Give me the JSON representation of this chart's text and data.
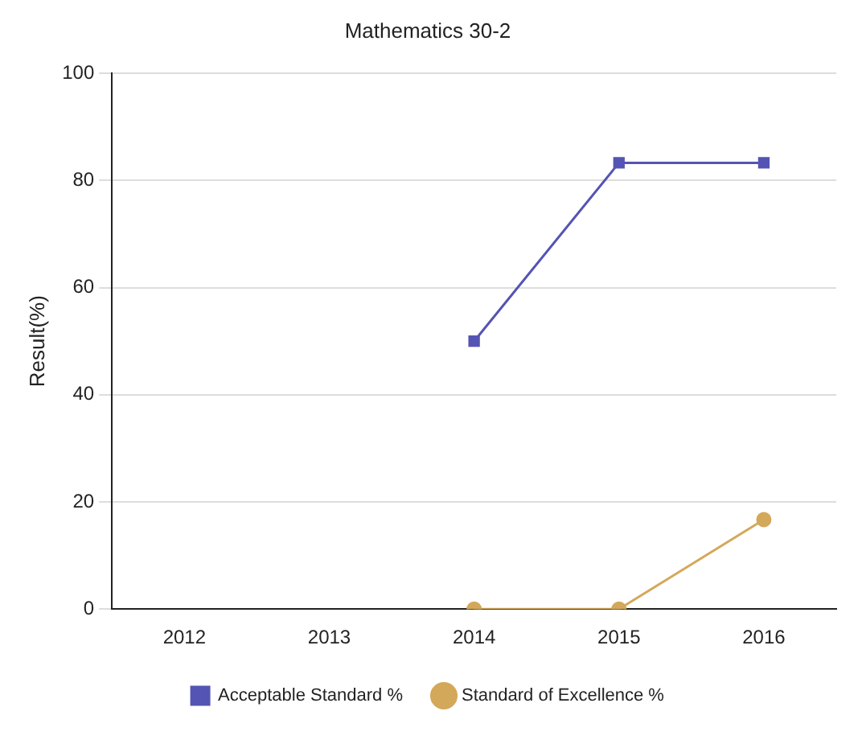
{
  "chart_data": {
    "type": "line",
    "title": "Mathematics 30-2",
    "ylabel": "Result(%)",
    "categories": [
      "2012",
      "2013",
      "2014",
      "2015",
      "2016"
    ],
    "series": [
      {
        "name": "Acceptable Standard %",
        "color": "#5454b4",
        "values": [
          null,
          null,
          50,
          83.3,
          83.3
        ],
        "marker": "square"
      },
      {
        "name": "Standard of Excellence %",
        "color": "#d4a85a",
        "values": [
          null,
          null,
          0,
          0,
          16.7
        ],
        "marker": "circle"
      }
    ],
    "ylim": [
      0,
      100
    ],
    "yticks": [
      0,
      20,
      40,
      60,
      80,
      100
    ],
    "grid": "y",
    "legend": "bottom",
    "line_style": "solid"
  }
}
